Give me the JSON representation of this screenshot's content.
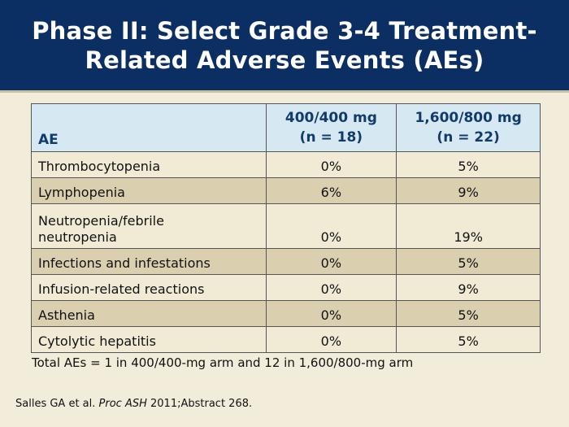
{
  "slide": {
    "title_line1": "Phase II: Select Grade 3-4 Treatment-",
    "title_line2": "Related Adverse Events (AEs)"
  },
  "table": {
    "headers": {
      "ae": "AE",
      "col1_line1": "400/400 mg",
      "col1_line2": "(n = 18)",
      "col2_line1": "1,600/800 mg",
      "col2_line2": "(n = 22)"
    },
    "rows": [
      {
        "ae": "Thrombocytopenia",
        "arm1": "0%",
        "arm2": "5%"
      },
      {
        "ae": "Lymphopenia",
        "arm1": "6%",
        "arm2": "9%"
      },
      {
        "ae_line1": "Neutropenia/febrile",
        "ae_line2": "neutropenia",
        "arm1": "0%",
        "arm2": "19%"
      },
      {
        "ae": "Infections and infestations",
        "arm1": "0%",
        "arm2": "5%"
      },
      {
        "ae": "Infusion-related reactions",
        "arm1": "0%",
        "arm2": "9%"
      },
      {
        "ae": "Asthenia",
        "arm1": "0%",
        "arm2": "5%"
      },
      {
        "ae": "Cytolytic hepatitis",
        "arm1": "0%",
        "arm2": "5%"
      }
    ]
  },
  "note": "Total AEs = 1 in 400/400-mg arm and 12 in 1,600/800-mg arm",
  "citation": {
    "authors": "Salles GA et al.",
    "journal": "Proc ASH",
    "details": "2011;Abstract 268."
  },
  "colors": {
    "header_bg": "#0b2f63",
    "page_bg": "#f2ecda",
    "table_header_bg": "#d6e8f2",
    "row_light": "#f1ebd6",
    "row_dark": "#dad0b0"
  }
}
